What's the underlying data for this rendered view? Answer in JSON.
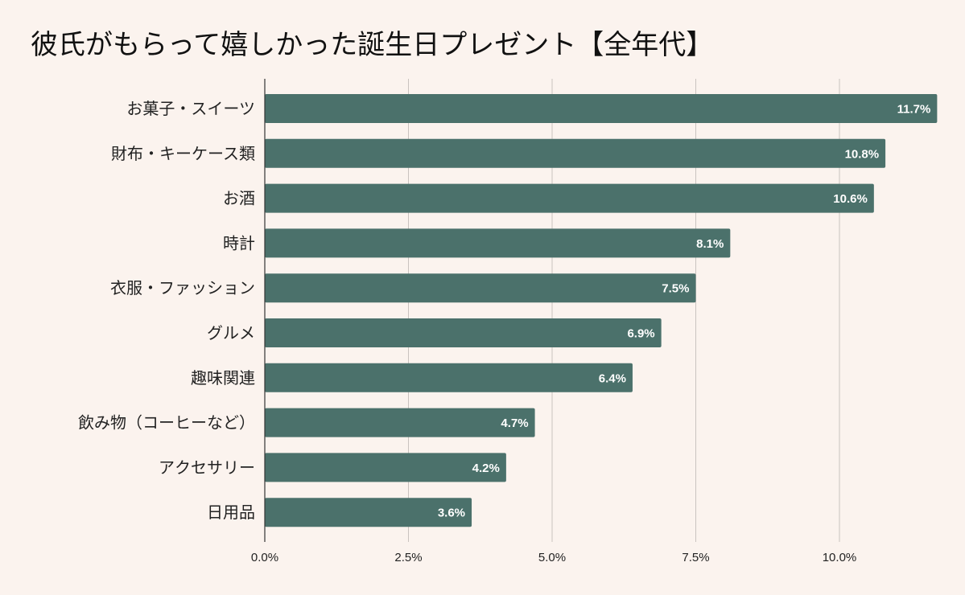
{
  "chart_data": {
    "type": "bar",
    "orientation": "horizontal",
    "title": "彼氏がもらって嬉しかった誕生日プレゼント【全年代】",
    "categories": [
      "お菓子・スイーツ",
      "財布・キーケース類",
      "お酒",
      "時計",
      "衣服・ファッション",
      "グルメ",
      "趣味関連",
      "飲み物（コーヒーなど）",
      "アクセサリー",
      "日用品"
    ],
    "values": [
      11.7,
      10.8,
      10.6,
      8.1,
      7.5,
      6.9,
      6.4,
      4.7,
      4.2,
      3.6
    ],
    "value_labels": [
      "11.7%",
      "10.8%",
      "10.6%",
      "8.1%",
      "7.5%",
      "6.9%",
      "6.4%",
      "4.7%",
      "4.2%",
      "3.6%"
    ],
    "x_ticks": [
      0,
      2.5,
      5,
      7.5,
      10
    ],
    "x_tick_labels": [
      "0.0%",
      "2.5%",
      "5.0%",
      "7.5%",
      "10.0%"
    ],
    "xlim": [
      0,
      11.7
    ],
    "grid": true,
    "legend": "none",
    "colors": {
      "bar": "#4b716b",
      "background": "#fbf3ee",
      "grid": "#c9c3bf",
      "axis": "#333333"
    }
  }
}
